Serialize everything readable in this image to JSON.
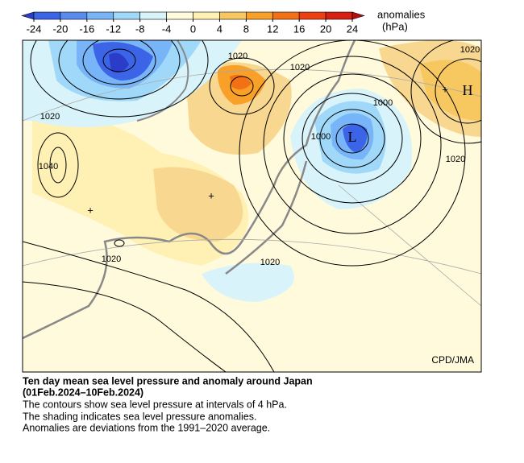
{
  "colorbar": {
    "label": "anomalies",
    "unit": "(hPa)",
    "ticks": [
      -24,
      -20,
      -16,
      -12,
      -8,
      -4,
      0,
      4,
      8,
      12,
      16,
      20,
      24
    ],
    "colors": [
      "#2a3cc8",
      "#3c64e6",
      "#5a8cf0",
      "#78b4f8",
      "#a0d8fa",
      "#d8f4fa",
      "#fffadc",
      "#fff0b4",
      "#f8c860",
      "#f8a028",
      "#f47014",
      "#ec4010",
      "#d82010",
      "#b80c0c"
    ]
  },
  "map": {
    "isobar_labels": [
      "1020",
      "1020",
      "1020",
      "1000",
      "1000",
      "1020",
      "1020",
      "1020",
      "1020",
      "1040"
    ],
    "centers": [
      "H",
      "L"
    ],
    "credit": "CPD/JMA"
  },
  "caption": {
    "title": "Ten day mean sea level pressure and anomaly around Japan",
    "period": "(01Feb.2024–10Feb.2024)",
    "lines": [
      "The contours show sea level pressure at intervals of 4 hPa.",
      "The shading indicates sea level pressure anomalies.",
      "Anomalies are deviations from the 1991–2020 average."
    ]
  }
}
